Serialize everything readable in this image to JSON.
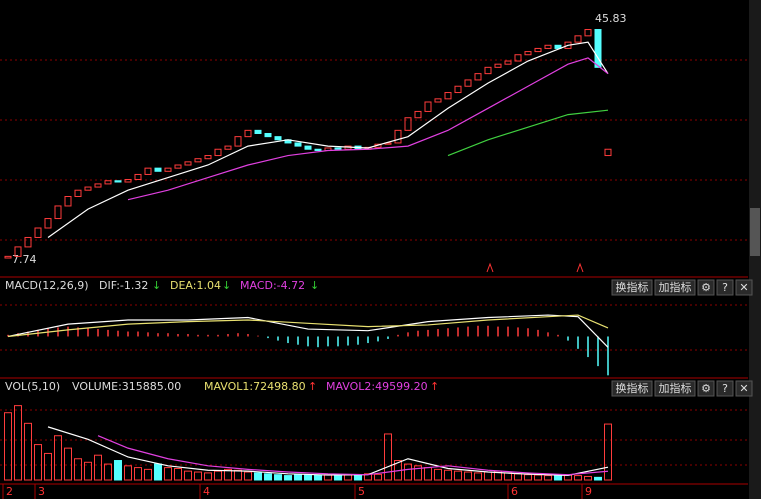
{
  "chart_data": {
    "type": "candlestick",
    "price_low_label": "7.74",
    "price_high_label": "45.83",
    "price_low": 7.74,
    "price_high": 45.83,
    "opens": [
      7.74,
      8,
      9.5,
      11,
      12.5,
      14,
      16,
      17.5,
      18.5,
      19,
      19.5,
      20,
      19.8,
      20.2,
      21,
      22,
      21.5,
      22,
      22.5,
      23,
      23.5,
      24,
      25,
      25.5,
      27,
      28,
      27.5,
      27,
      26.5,
      26,
      25.5,
      25,
      24.8,
      25.2,
      25,
      25.5,
      25,
      25.3,
      25.8,
      26,
      28,
      30,
      31,
      32.5,
      33,
      34,
      35,
      36,
      37,
      38,
      38.5,
      39,
      40,
      40.5,
      41,
      41.5,
      41,
      42,
      43,
      44,
      24
    ],
    "closes": [
      8,
      9.5,
      11,
      12.5,
      14,
      16,
      17.5,
      18.5,
      19,
      19.5,
      20,
      19.8,
      20.2,
      21,
      22,
      21.5,
      22,
      22.5,
      23,
      23.5,
      24,
      25,
      25.5,
      27,
      28,
      27.5,
      27,
      26.5,
      26,
      25.5,
      25,
      24.8,
      25.2,
      25,
      25.5,
      25,
      25.3,
      25.8,
      26,
      28,
      30,
      31,
      32.5,
      33,
      34,
      35,
      36,
      37,
      38,
      38.5,
      39,
      40,
      40.5,
      41,
      41.5,
      41,
      42,
      43,
      44,
      38,
      25
    ],
    "up_color": "#ff3c3c",
    "down_color": "#54ffff",
    "ma_lines": [
      {
        "color": "#ffffff",
        "x": [
          4,
          8,
          12,
          16,
          20,
          24,
          28,
          32,
          36,
          40,
          44,
          48,
          52,
          56,
          58,
          60
        ],
        "values": [
          11,
          15.5,
          18.5,
          20.5,
          22.5,
          25.5,
          26.5,
          25.5,
          25.2,
          27,
          31.5,
          35.5,
          39,
          41.5,
          42,
          37
        ]
      },
      {
        "color": "#e040e0",
        "x": [
          12,
          16,
          20,
          24,
          28,
          32,
          36,
          40,
          44,
          48,
          52,
          56,
          58,
          60
        ],
        "values": [
          17,
          18.5,
          20.5,
          22.5,
          24,
          24.8,
          25,
          25.5,
          28,
          31.5,
          35,
          38.5,
          39.5,
          37
        ]
      },
      {
        "color": "#40d040",
        "x": [
          44,
          48,
          52,
          56,
          60
        ],
        "values": [
          24,
          26.5,
          28.5,
          30.5,
          31.2
        ]
      }
    ],
    "macd": {
      "title": "MACD(12,26,9)",
      "dif_label": "DIF:-1.32",
      "dif_arrow": "↓",
      "dea_label": "DEA:1.04",
      "dea_arrow": "↓",
      "macd_label": "MACD:-4.72",
      "macd_arrow": "↓",
      "ylim": [
        -4.8,
        5.4
      ],
      "hist": [
        0.2,
        0.4,
        0.6,
        0.8,
        1.0,
        1.1,
        1.2,
        1.1,
        1.0,
        0.9,
        0.8,
        0.7,
        0.6,
        0.6,
        0.5,
        0.4,
        0.4,
        0.3,
        0.3,
        0.2,
        0.2,
        0.2,
        0.3,
        0.4,
        0.3,
        0.1,
        -0.2,
        -0.5,
        -0.8,
        -1.0,
        -1.2,
        -1.3,
        -1.2,
        -1.2,
        -1.1,
        -1.0,
        -0.8,
        -0.6,
        -0.3,
        0.2,
        0.5,
        0.7,
        0.8,
        0.9,
        1.0,
        1.1,
        1.2,
        1.3,
        1.3,
        1.2,
        1.2,
        1.1,
        1.0,
        0.8,
        0.5,
        0.2,
        -0.5,
        -1.5,
        -2.5,
        -3.6,
        -4.72
      ],
      "lines": [
        {
          "color": "#ffffff",
          "x": [
            0,
            6,
            12,
            18,
            24,
            30,
            36,
            42,
            48,
            54,
            57,
            60
          ],
          "values": [
            0,
            1.5,
            2,
            2,
            2.3,
            0.9,
            0.7,
            1.8,
            2.3,
            2.6,
            2.4,
            -1.32
          ]
        },
        {
          "color": "#e8e070",
          "x": [
            0,
            6,
            12,
            18,
            24,
            30,
            36,
            42,
            48,
            54,
            57,
            60
          ],
          "values": [
            0,
            0.8,
            1.5,
            1.8,
            2,
            1.6,
            1.2,
            1.4,
            2,
            2.4,
            2.6,
            1.04
          ]
        }
      ]
    },
    "volume": {
      "title": "VOL(5,10)",
      "volume_label": "VOLUME:315885.00",
      "mavol1_label": "MAVOL1:72498.80",
      "mavol1_arrow": "↑",
      "mavol2_label": "MAVOL2:49599.20",
      "mavol2_arrow": "↑",
      "ylim": [
        0,
        480000
      ],
      "values": [
        380000,
        420000,
        320000,
        200000,
        150000,
        250000,
        180000,
        120000,
        100000,
        140000,
        90000,
        110000,
        80000,
        70000,
        60000,
        90000,
        70000,
        65000,
        50000,
        45000,
        40000,
        50000,
        60000,
        55000,
        45000,
        40000,
        35000,
        30000,
        25000,
        30000,
        28000,
        26000,
        30000,
        25000,
        28000,
        30000,
        35000,
        32000,
        260000,
        110000,
        90000,
        80000,
        70000,
        60000,
        55000,
        50000,
        45000,
        40000,
        45000,
        50000,
        40000,
        35000,
        30000,
        28000,
        25000,
        30000,
        28000,
        25000,
        20000,
        15000,
        315885
      ],
      "lines": [
        {
          "color": "#ffffff",
          "x": [
            4,
            8,
            12,
            16,
            20,
            24,
            28,
            32,
            36,
            40,
            44,
            48,
            52,
            56,
            60
          ],
          "values": [
            300000,
            230000,
            130000,
            80000,
            55000,
            50000,
            35000,
            28000,
            30000,
            120000,
            65000,
            45000,
            33000,
            26000,
            72498.8
          ]
        },
        {
          "color": "#e040e0",
          "x": [
            9,
            12,
            16,
            20,
            24,
            28,
            32,
            36,
            40,
            44,
            48,
            52,
            56,
            60
          ],
          "values": [
            250000,
            180000,
            120000,
            80000,
            60000,
            45000,
            35000,
            30000,
            60000,
            80000,
            55000,
            40000,
            30000,
            49599.2
          ]
        }
      ]
    },
    "month_marks": [
      {
        "label": "2",
        "index": -0.5
      },
      {
        "label": "3",
        "index": 2.7
      },
      {
        "label": "4",
        "index": 19.2
      },
      {
        "label": "5",
        "index": 34.7
      },
      {
        "label": "6",
        "index": 50
      },
      {
        "label": "9",
        "index": 57.4
      }
    ],
    "buttons": [
      "换指标",
      "加指标",
      "⚙",
      "?",
      "✕"
    ]
  }
}
